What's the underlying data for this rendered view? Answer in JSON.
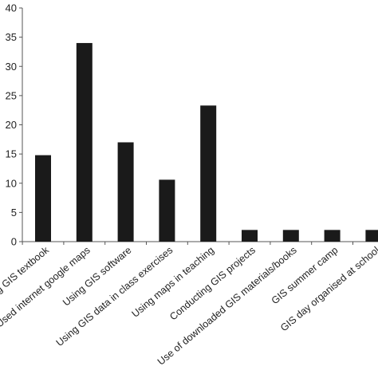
{
  "chart_data": {
    "type": "bar",
    "title": "",
    "xlabel": "",
    "ylabel": "",
    "ylim": [
      0,
      40
    ],
    "yticks": [
      0,
      5,
      10,
      15,
      20,
      25,
      30,
      35,
      40
    ],
    "categories": [
      "Using GIS textbook",
      "Used internet google maps",
      "Using GIS software",
      "Using GIS data in class exercises",
      "Using maps in teaching",
      "Conducting GIS projects",
      "Use of downloaded GIS materials/books",
      "GIS summer camp",
      "GIS day organised at school"
    ],
    "values": [
      14.8,
      34,
      17,
      10.6,
      23.3,
      2,
      2,
      2,
      2
    ],
    "grid": false,
    "legend": "none",
    "colors": {
      "bar": "#1a1a1a",
      "axis": "#555555",
      "text": "#222222"
    }
  }
}
